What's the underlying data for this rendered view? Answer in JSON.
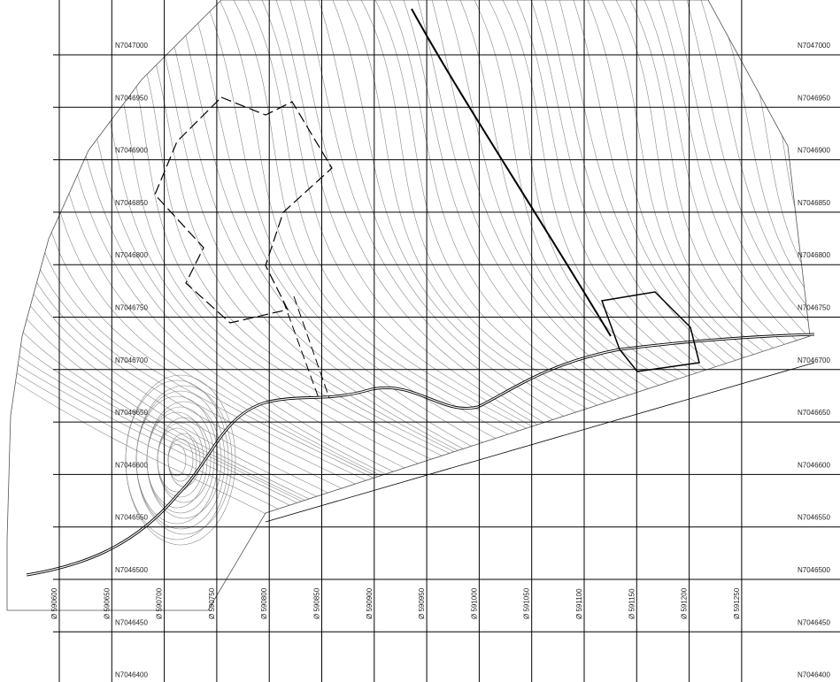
{
  "northing_labels": [
    "N7047000",
    "N7046950",
    "N7046900",
    "N7046850",
    "N7046800",
    "N7046750",
    "N7046700",
    "N7046650",
    "N7046600",
    "N7046550",
    "N7046500",
    "N7046450",
    "N7046400"
  ],
  "easting_labels": [
    "Ø 590600",
    "Ø 590650",
    "Ø 590700",
    "Ø 590750",
    "Ø 590800",
    "Ø 590850",
    "Ø 590900",
    "Ø 590950",
    "Ø 591000",
    "Ø 591050",
    "Ø 591100",
    "Ø 591150",
    "Ø 591200",
    "Ø 591250"
  ]
}
